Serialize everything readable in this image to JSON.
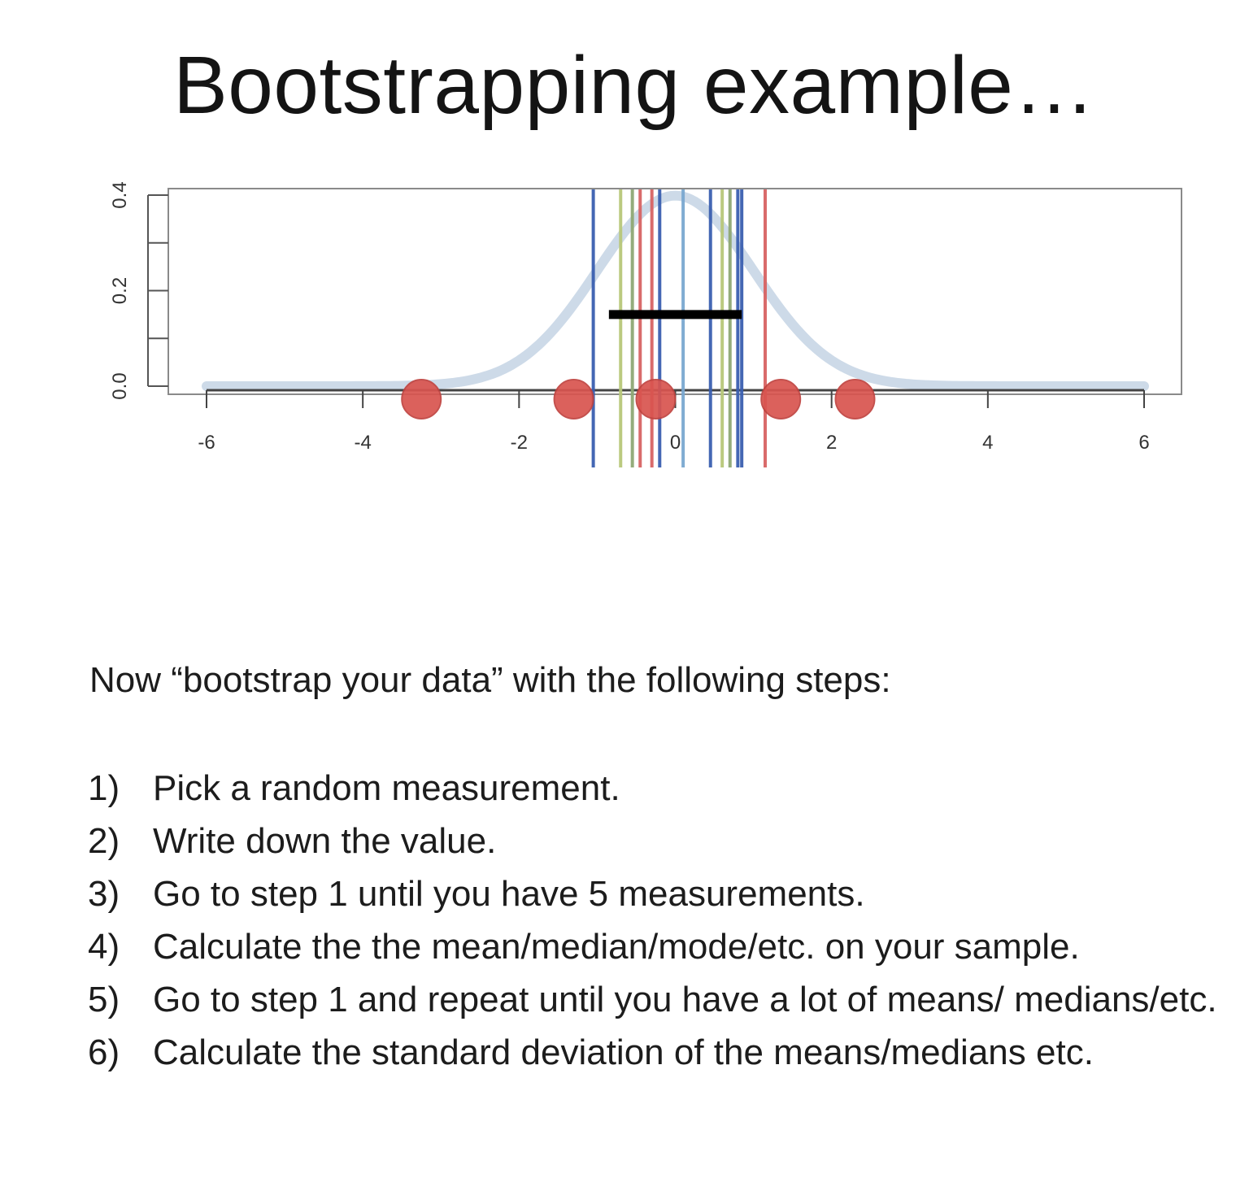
{
  "title": "Bootstrapping example…",
  "intro": "Now “bootstrap your data” with the following steps:",
  "steps": [
    {
      "num": "1)",
      "text": "Pick a random measurement."
    },
    {
      "num": "2)",
      "text": "Write down the value."
    },
    {
      "num": "3)",
      "text": "Go to step 1 until you have 5 measurements."
    },
    {
      "num": "4)",
      "text": "Calculate the the mean/median/mode/etc. on your sample."
    },
    {
      "num": "5)",
      "text": "Go to step 1 and repeat until you have a lot of means/ medians/etc."
    },
    {
      "num": "6)",
      "text": "Calculate the standard deviation of the means/medians etc."
    }
  ],
  "chart_data": {
    "type": "line",
    "title": "",
    "xlabel": "",
    "ylabel": "",
    "xlim": [
      -6,
      6
    ],
    "ylim": [
      0,
      0.4
    ],
    "x_ticks": [
      -6,
      -4,
      -2,
      0,
      2,
      4,
      6
    ],
    "x_tick_labels": [
      "-6",
      "-4",
      "-2",
      "0",
      "2",
      "4",
      "6"
    ],
    "y_ticks": [
      0.0,
      0.2,
      0.4
    ],
    "y_tick_labels": [
      "0.0",
      "0.2",
      "0.4"
    ],
    "curve": {
      "distribution": "normal",
      "mean": 0,
      "sd": 1,
      "color": "#c8d6e6"
    },
    "sample_points": [
      -3.25,
      -1.3,
      -0.25,
      1.35,
      2.3
    ],
    "point_color": "#d9544f",
    "bootstrap_lines": [
      {
        "x": -1.05,
        "color": "#3a5fb0"
      },
      {
        "x": -0.7,
        "color": "#b8c87a"
      },
      {
        "x": -0.55,
        "color": "#8fa874"
      },
      {
        "x": -0.45,
        "color": "#d86464"
      },
      {
        "x": -0.3,
        "color": "#d86464"
      },
      {
        "x": -0.2,
        "color": "#3a5fb0"
      },
      {
        "x": 0.1,
        "color": "#7aa8d0"
      },
      {
        "x": 0.45,
        "color": "#3a5fb0"
      },
      {
        "x": 0.6,
        "color": "#b8c87a"
      },
      {
        "x": 0.7,
        "color": "#8fa874"
      },
      {
        "x": 0.8,
        "color": "#3a5fb0"
      },
      {
        "x": 0.85,
        "color": "#3a5fb0"
      },
      {
        "x": 1.15,
        "color": "#d86464"
      }
    ],
    "interval_bar": {
      "x_start": -0.85,
      "x_end": 0.85,
      "y": 0.15,
      "color": "#000000"
    },
    "grid": false
  }
}
